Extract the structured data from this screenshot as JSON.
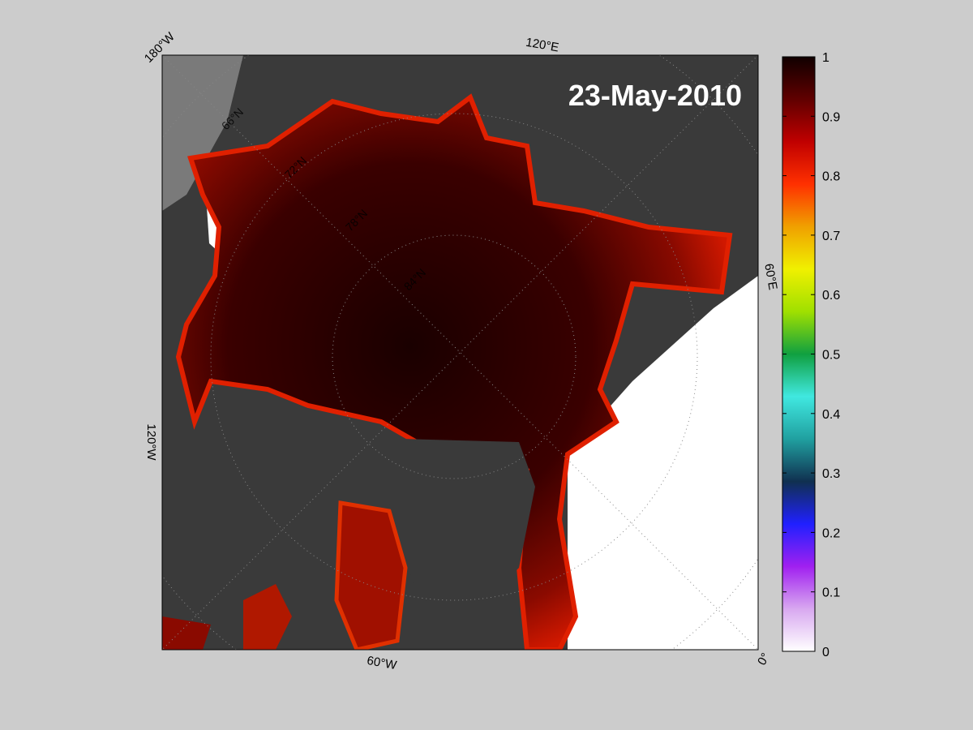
{
  "map": {
    "title": "23-May-2010",
    "lon_labels": [
      "180°W",
      "120°E",
      "60°E",
      "0°",
      "60°W",
      "120°W"
    ],
    "lat_labels": [
      "66°N",
      "72°N",
      "78°N",
      "84°N"
    ]
  },
  "colorbar": {
    "lim": [
      0,
      1
    ],
    "ticks": [
      0,
      0.1,
      0.2,
      0.3,
      0.4,
      0.5,
      0.6,
      0.7,
      0.8,
      0.9,
      1
    ],
    "colors": [
      "#ffffff",
      "#d8a8f0",
      "#a020f0",
      "#2020ff",
      "#103050",
      "#20a0a0",
      "#40e8e0",
      "#10a040",
      "#a0e000",
      "#f0f000",
      "#f0a000",
      "#ff3000",
      "#c00000",
      "#600000",
      "#100000"
    ]
  }
}
